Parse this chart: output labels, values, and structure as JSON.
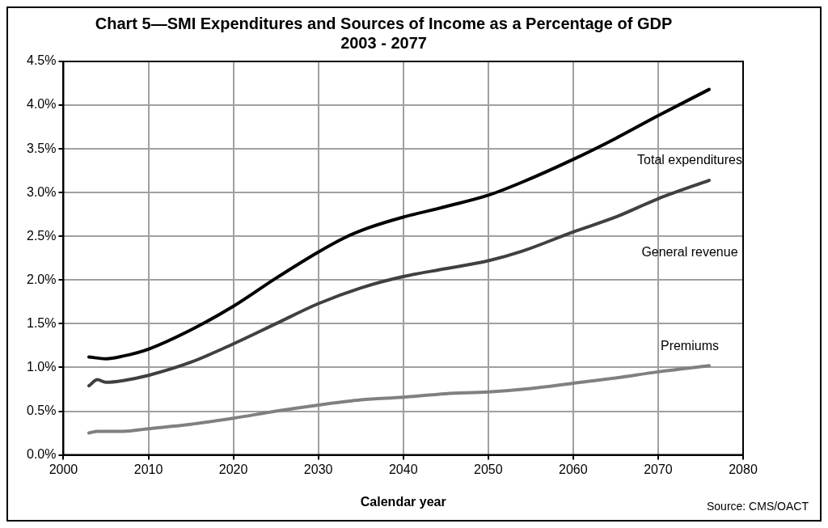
{
  "chart_data": {
    "type": "line",
    "title": [
      "Chart 5—SMI Expenditures and Sources of Income as a Percentage of GDP",
      "2003 - 2077"
    ],
    "xlabel": "Calendar year",
    "xlim": [
      2000,
      2080
    ],
    "xticks": [
      2000,
      2010,
      2020,
      2030,
      2040,
      2050,
      2060,
      2070,
      2080
    ],
    "ylim": [
      0,
      4.5
    ],
    "yticks": [
      {
        "value": 0,
        "label": "0.0%"
      },
      {
        "value": 0.5,
        "label": "0.5%"
      },
      {
        "value": 1,
        "label": "1.0%"
      },
      {
        "value": 1.5,
        "label": "1.5%"
      },
      {
        "value": 2,
        "label": "2.0%"
      },
      {
        "value": 2.5,
        "label": "2.5%"
      },
      {
        "value": 3,
        "label": "3.0%"
      },
      {
        "value": 3.5,
        "label": "3.5%"
      },
      {
        "value": 4,
        "label": "4.0%"
      },
      {
        "value": 4.5,
        "label": "4.5%"
      }
    ],
    "grid": true,
    "legend": false,
    "marker": "none",
    "line_style": "solid",
    "annotations": [
      "Source: CMS/OACT"
    ],
    "series": [
      {
        "name": "Total expenditures",
        "color": "#000000",
        "x": [
          2003,
          2005,
          2007,
          2010,
          2015,
          2020,
          2025,
          2030,
          2033,
          2036,
          2040,
          2045,
          2050,
          2054,
          2060,
          2065,
          2070,
          2076
        ],
        "values": [
          1.12,
          1.1,
          1.13,
          1.21,
          1.43,
          1.7,
          2.02,
          2.32,
          2.48,
          2.6,
          2.72,
          2.84,
          2.97,
          3.12,
          3.38,
          3.62,
          3.88,
          4.18
        ]
      },
      {
        "name": "General revenue",
        "color": "#404040",
        "x": [
          2003,
          2004,
          2005,
          2007,
          2010,
          2015,
          2020,
          2025,
          2030,
          2035,
          2040,
          2045,
          2050,
          2054,
          2060,
          2065,
          2070,
          2076
        ],
        "values": [
          0.79,
          0.86,
          0.83,
          0.85,
          0.91,
          1.06,
          1.27,
          1.5,
          1.73,
          1.91,
          2.04,
          2.13,
          2.22,
          2.33,
          2.55,
          2.72,
          2.93,
          3.14
        ]
      },
      {
        "name": "Premiums",
        "color": "#808080",
        "x": [
          2003,
          2004,
          2007,
          2010,
          2015,
          2020,
          2025,
          2030,
          2035,
          2040,
          2045,
          2050,
          2055,
          2060,
          2065,
          2070,
          2076
        ],
        "values": [
          0.25,
          0.27,
          0.27,
          0.3,
          0.35,
          0.42,
          0.5,
          0.57,
          0.63,
          0.66,
          0.7,
          0.72,
          0.76,
          0.82,
          0.88,
          0.95,
          1.02
        ]
      }
    ]
  }
}
